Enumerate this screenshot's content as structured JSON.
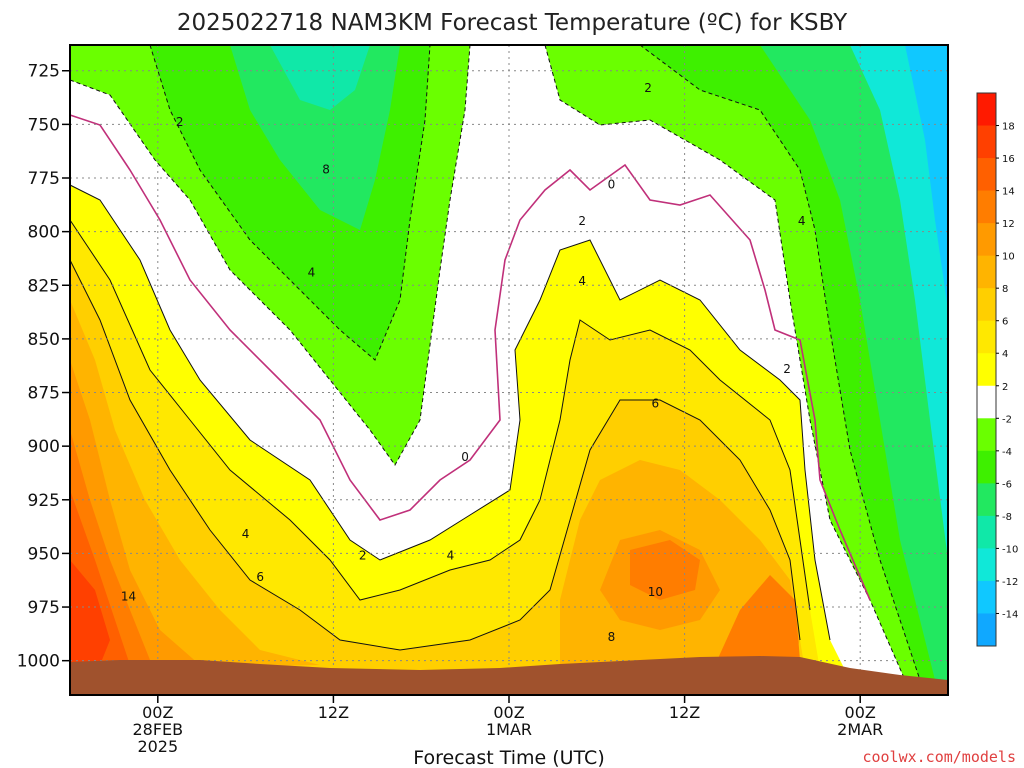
{
  "chart_data": {
    "type": "heatmap",
    "title": "2025022718 NAM3KM Forecast Temperature (ºC) for KSBY",
    "xlabel": "Forecast Time (UTC)",
    "ylabel": "",
    "x_ticks": [
      {
        "hours": 6,
        "lines": [
          "00Z",
          "28FEB",
          "2025"
        ]
      },
      {
        "hours": 18,
        "lines": [
          "12Z"
        ]
      },
      {
        "hours": 30,
        "lines": [
          "00Z",
          "1MAR"
        ]
      },
      {
        "hours": 42,
        "lines": [
          "12Z"
        ]
      },
      {
        "hours": 54,
        "lines": [
          "00Z",
          "2MAR"
        ]
      }
    ],
    "x_range_hours": [
      0,
      60
    ],
    "y_ticks": [
      725,
      750,
      775,
      800,
      825,
      850,
      875,
      900,
      925,
      950,
      975,
      1000
    ],
    "y_range_hPa": [
      713,
      1016
    ],
    "grid": true,
    "colorbar": {
      "placement": "right",
      "ticks": [
        18,
        16,
        14,
        12,
        10,
        8,
        6,
        4,
        2,
        -2,
        -4,
        -6,
        -8,
        -10,
        -12,
        -14
      ],
      "colors": [
        "#ff1a00",
        "#ff4000",
        "#ff6000",
        "#ff7d00",
        "#ff9a00",
        "#ffb400",
        "#ffcf00",
        "#ffe800",
        "#ffff00",
        "#ffffff",
        "#6aff00",
        "#3ef000",
        "#22e860",
        "#10e8a8",
        "#10e8d8",
        "#10c8ff",
        "#10a8ff"
      ]
    },
    "contour_labels": [
      {
        "text": "2",
        "hours": 7.5,
        "hPa": 749
      },
      {
        "text": "2",
        "hours": 39.5,
        "hPa": 733
      },
      {
        "text": "8",
        "hours": 17.5,
        "hPa": 771
      },
      {
        "text": "0",
        "hours": 37,
        "hPa": 778
      },
      {
        "text": "2",
        "hours": 35,
        "hPa": 795
      },
      {
        "text": "4",
        "hours": 50,
        "hPa": 795
      },
      {
        "text": "4",
        "hours": 16.5,
        "hPa": 819
      },
      {
        "text": "4",
        "hours": 35,
        "hPa": 823
      },
      {
        "text": "2",
        "hours": 49,
        "hPa": 864
      },
      {
        "text": "6",
        "hours": 40,
        "hPa": 880
      },
      {
        "text": "0",
        "hours": 27,
        "hPa": 905
      },
      {
        "text": "4",
        "hours": 12,
        "hPa": 941
      },
      {
        "text": "2",
        "hours": 20,
        "hPa": 951
      },
      {
        "text": "4",
        "hours": 26,
        "hPa": 951
      },
      {
        "text": "6",
        "hours": 13,
        "hPa": 961
      },
      {
        "text": "10",
        "hours": 40,
        "hPa": 968
      },
      {
        "text": "14",
        "hours": 4,
        "hPa": 970
      },
      {
        "text": "8",
        "hours": 37,
        "hPa": 989
      }
    ]
  },
  "credit": "coolwx.com/models",
  "colors": {
    "ground": "#a0522d",
    "frame": "#000000",
    "freezing_line": "#c0307a",
    "grid": "#888888"
  }
}
